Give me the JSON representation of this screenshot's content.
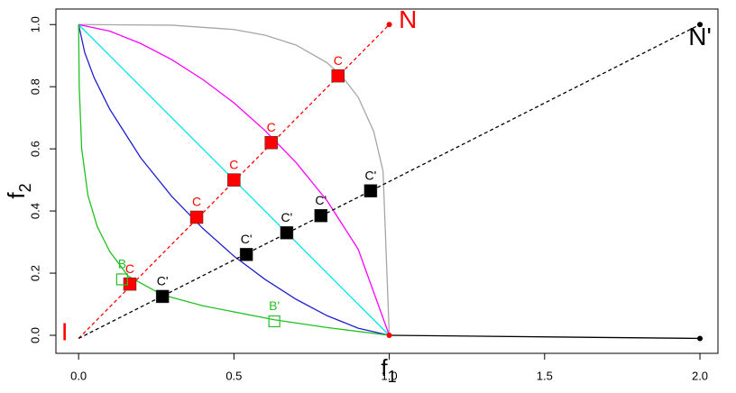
{
  "chart_data": {
    "type": "line",
    "x_label": {
      "text": "f",
      "sub": "1"
    },
    "y_label": {
      "text": "f",
      "sub": "2"
    },
    "xlim": [
      -0.073,
      2.058
    ],
    "ylim": [
      -0.058,
      1.05
    ],
    "xticks": [
      {
        "value": 0,
        "label": "0.0"
      },
      0.5,
      {
        "value": 1,
        "label": "1.0"
      },
      1.5,
      {
        "value": 2,
        "label": "2.0"
      }
    ],
    "yticks": [
      {
        "value": 0,
        "label": "0.0"
      },
      0.2,
      0.4,
      0.6,
      0.8,
      {
        "value": 1,
        "label": "1.0"
      }
    ],
    "series": [
      {
        "color": "#a6a6a6",
        "dash": false,
        "x": [
          0,
          0.3,
          0.5,
          0.6,
          0.7,
          0.8,
          0.85,
          0.9,
          0.95,
          0.98,
          1
        ],
        "values": [
          1,
          0.998,
          0.984,
          0.966,
          0.934,
          0.877,
          0.831,
          0.766,
          0.656,
          0.528,
          0
        ]
      },
      {
        "color": "#ff00ff",
        "dash": false,
        "x": [
          0,
          0.1,
          0.2,
          0.3,
          0.4,
          0.5,
          0.6,
          0.7,
          0.8,
          0.9,
          1
        ],
        "values": [
          1,
          0.979,
          0.939,
          0.887,
          0.823,
          0.748,
          0.659,
          0.556,
          0.433,
          0.277,
          0
        ]
      },
      {
        "color": "#00e5ee",
        "dash": false,
        "x": [
          0,
          1
        ],
        "values": [
          1,
          0
        ]
      },
      {
        "color": "#2020d0",
        "dash": false,
        "x": [
          0,
          0.02,
          0.05,
          0.1,
          0.2,
          0.3,
          0.4,
          0.5,
          0.6,
          0.7,
          0.8,
          0.9,
          1
        ],
        "values": [
          1,
          0.909,
          0.829,
          0.728,
          0.571,
          0.447,
          0.344,
          0.255,
          0.18,
          0.116,
          0.063,
          0.023,
          0
        ]
      },
      {
        "color": "#22c022",
        "dash": false,
        "x": [
          0,
          0.002,
          0.01,
          0.03,
          0.06,
          0.1,
          0.16,
          0.27,
          0.4,
          0.63,
          0.8,
          1
        ],
        "values": [
          1,
          0.8,
          0.6,
          0.45,
          0.35,
          0.27,
          0.19,
          0.13,
          0.095,
          0.05,
          0.025,
          0
        ]
      },
      {
        "color": "#ff0000",
        "dash": true,
        "x": [
          0,
          1
        ],
        "values": [
          -0.01,
          1
        ]
      },
      {
        "color": "#000000",
        "dash": true,
        "x": [
          0,
          2
        ],
        "values": [
          -0.01,
          1
        ]
      },
      {
        "color": "#000000",
        "dash": false,
        "x": [
          1,
          2
        ],
        "values": [
          0,
          -0.01
        ]
      }
    ],
    "points": [
      {
        "marker": "filled",
        "color": "#ff0000",
        "label_color": "#ff0000",
        "x": [
          0.165,
          0.38,
          0.5,
          0.62,
          0.835
        ],
        "values": [
          0.165,
          0.38,
          0.5,
          0.62,
          0.835
        ],
        "labels": [
          "C",
          "C",
          "C",
          "C",
          "C"
        ]
      },
      {
        "marker": "filled",
        "color": "#000000",
        "label_color": "#000000",
        "x": [
          0.27,
          0.54,
          0.67,
          0.78,
          0.94
        ],
        "values": [
          0.125,
          0.26,
          0.33,
          0.385,
          0.465
        ],
        "labels": [
          "C'",
          "C'",
          "C'",
          "C'",
          "C'"
        ]
      },
      {
        "marker": "open",
        "color": "#22c022",
        "label_color": "#22c022",
        "x": [
          0.14,
          0.63
        ],
        "values": [
          0.18,
          0.045
        ],
        "labels": [
          "B",
          "B'"
        ]
      },
      {
        "marker": "dot",
        "color": "#ff0000",
        "x": [
          1,
          1
        ],
        "values": [
          1,
          0
        ]
      },
      {
        "marker": "dot",
        "color": "#000000",
        "x": [
          2,
          2
        ],
        "values": [
          1,
          -0.01
        ]
      }
    ],
    "annotations": [
      {
        "text": "N",
        "color": "#ff0000",
        "x": 1.06,
        "y": 1.01
      },
      {
        "text": "N'",
        "color": "#000000",
        "x": 2.0,
        "y": 0.955
      },
      {
        "text": "I",
        "color": "#ff0000",
        "x": -0.045,
        "y": 0.005
      }
    ]
  }
}
